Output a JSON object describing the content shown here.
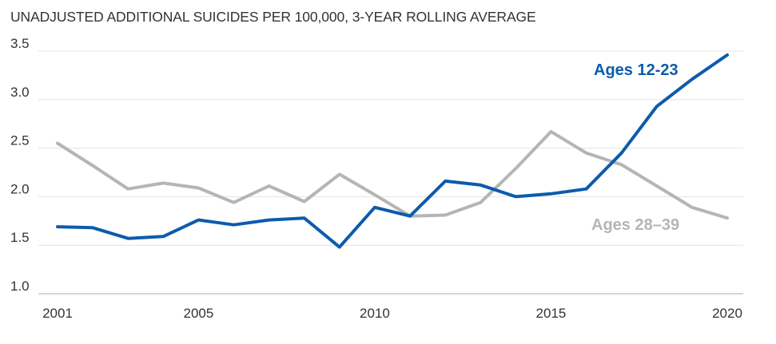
{
  "chart_data": {
    "type": "line",
    "title": "UNADJUSTED ADDITIONAL SUICIDES PER 100,000, 3-YEAR ROLLING AVERAGE",
    "xlabel": "",
    "ylabel": "",
    "x": [
      2001,
      2002,
      2003,
      2004,
      2005,
      2006,
      2007,
      2008,
      2009,
      2010,
      2011,
      2012,
      2013,
      2014,
      2015,
      2016,
      2017,
      2018,
      2019,
      2020
    ],
    "xticks": [
      "2001",
      "2005",
      "2010",
      "2015",
      "2020"
    ],
    "xlim": [
      2001,
      2020
    ],
    "ylim": [
      1.0,
      3.5
    ],
    "yticks": [
      "1.0",
      "1.5",
      "2.0",
      "2.5",
      "3.0",
      "3.5"
    ],
    "grid": "horizontal",
    "legend": "inline labels",
    "series": [
      {
        "name": "Ages 28–39",
        "color": "#b5b5b5",
        "values": [
          2.55,
          2.32,
          2.08,
          2.14,
          2.09,
          1.94,
          2.11,
          1.95,
          2.23,
          2.02,
          1.8,
          1.81,
          1.94,
          2.29,
          2.67,
          2.45,
          2.33,
          2.11,
          1.89,
          1.78
        ]
      },
      {
        "name": "Ages 12-23",
        "color": "#0c5bad",
        "values": [
          1.69,
          1.68,
          1.57,
          1.59,
          1.76,
          1.71,
          1.76,
          1.78,
          1.48,
          1.89,
          1.8,
          2.16,
          2.12,
          2.0,
          2.03,
          2.08,
          2.45,
          2.93,
          3.21,
          3.46
        ]
      }
    ]
  }
}
